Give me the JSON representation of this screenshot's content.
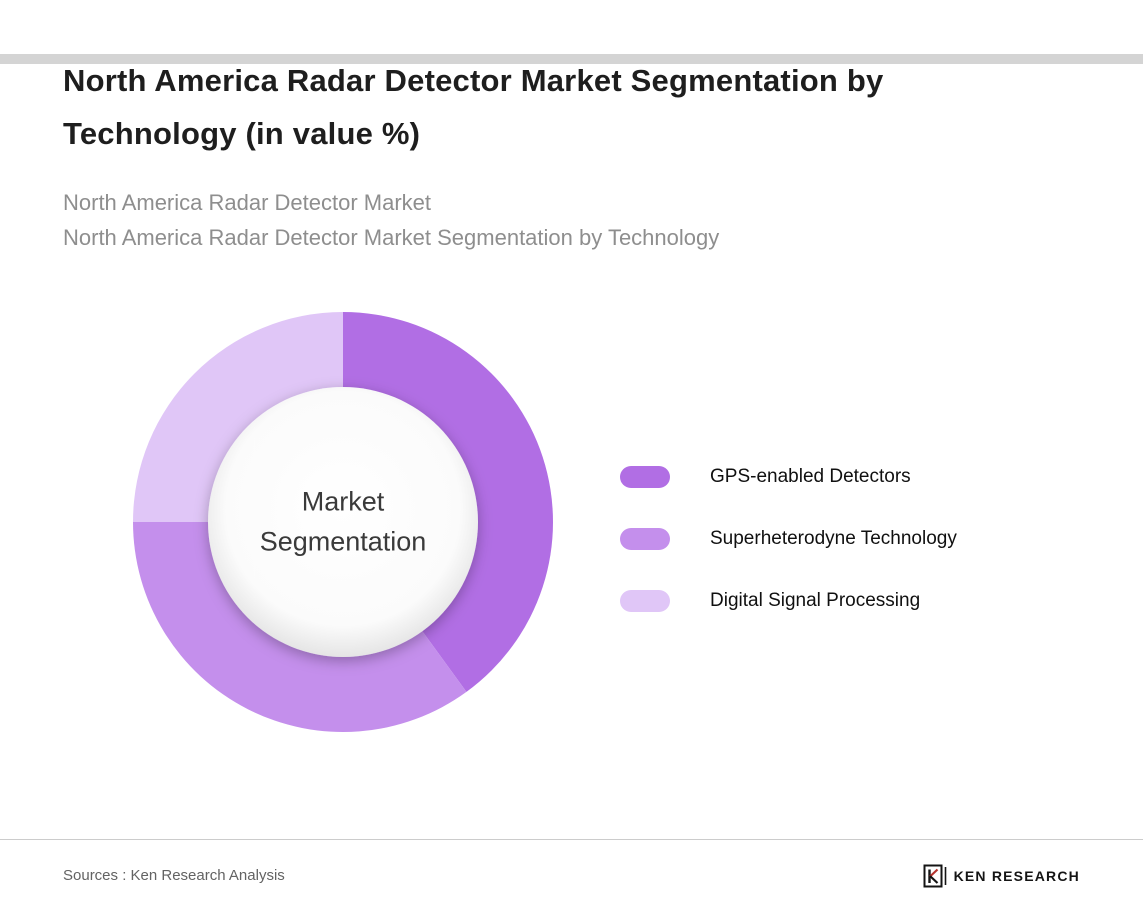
{
  "header": {
    "title": "North America Radar Detector Market Segmentation by Technology (in value %)",
    "subtitle_lines": [
      "North America Radar Detector Market",
      "North America Radar Detector Market Segmentation by Technology"
    ]
  },
  "chart_data": {
    "type": "pie",
    "donut": true,
    "title": "North America Radar Detector Market Segmentation by Technology (in value %)",
    "center_label": "Market Segmentation",
    "units": "value %",
    "values_shown_on_chart": false,
    "legend_position": "right",
    "start_angle_deg": 0,
    "direction": "clockwise",
    "segments": [
      {
        "label": "GPS-enabled Detectors",
        "value": 40,
        "color": "#b16ee4"
      },
      {
        "label": "Superheterodyne Technology",
        "value": 35,
        "color": "#c48fec"
      },
      {
        "label": "Digital Signal Processing",
        "value": 25,
        "color": "#e0c6f7"
      }
    ]
  },
  "footer": {
    "sources": "Sources : Ken Research Analysis",
    "logo_text": "KEN RESEARCH"
  }
}
